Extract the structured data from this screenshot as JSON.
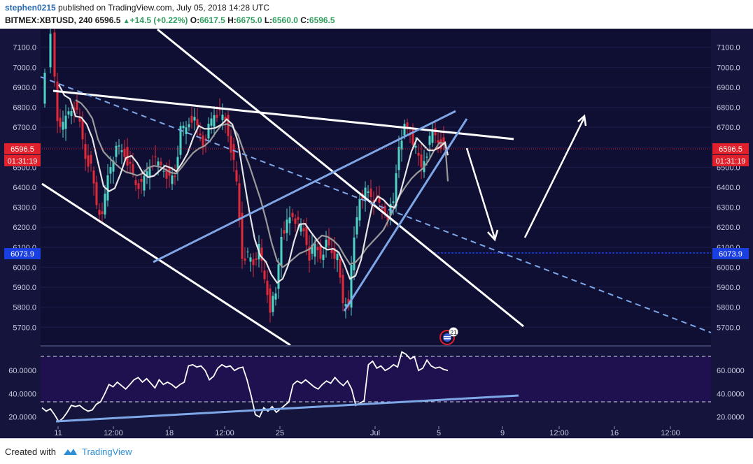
{
  "header": {
    "author": "stephen0215",
    "published": "published on TradingView.com, July 05, 2018 14:28 UTC",
    "symbol": "BITMEX:XBTUSD, 240",
    "last": "6596.5",
    "change_arrow": "▲",
    "change": "+14.5 (+0.22%)",
    "open_label": "O:",
    "open": "6617.5",
    "high_label": "H:",
    "high": "6675.0",
    "low_label": "L:",
    "low": "6560.0",
    "close_label": "C:",
    "close": "6596.5"
  },
  "footer": {
    "created_with": "Created with",
    "brand": "TradingView"
  },
  "chart_data": [
    {
      "type": "candlestick",
      "symbol": "BITMEX:XBTUSD",
      "interval": "240",
      "x_tick_labels": [
        "11",
        "12:00",
        "18",
        "12:00",
        "25",
        "Jul",
        "5",
        "9",
        "12:00",
        "16",
        "12:00"
      ],
      "y_tick_labels": [
        "5700.0",
        "5800.0",
        "5900.0",
        "6000.0",
        "6100.0",
        "6200.0",
        "6300.0",
        "6400.0",
        "6500.0",
        "6600.0",
        "6700.0",
        "6800.0",
        "6900.0",
        "7000.0",
        "7100.0"
      ],
      "ylim": [
        5610,
        7190
      ],
      "price_tags": [
        {
          "value": "6596.5",
          "color": "#e0202a"
        },
        {
          "value": "01:31:19",
          "color": "#e0202a"
        },
        {
          "value": "6073.9",
          "color": "#1a3fe0"
        }
      ],
      "colors": {
        "background": "#14143c",
        "candle_up": "#4fd3c4",
        "candle_down": "#e02a3a",
        "trendline": "#ffffff",
        "channel": "#7ea7e8",
        "ma_fast": "#e6e6e6",
        "ma_slow": "#9a9a9a",
        "price_line": "#e0202a",
        "support_line": "#1a3fe0"
      },
      "event_marker_count": "21"
    },
    {
      "type": "line",
      "indicator": "RSI",
      "y_tick_labels": [
        "20.0000",
        "40.0000",
        "60.0000"
      ],
      "ylim": [
        12,
        80
      ],
      "bands": [
        30,
        70
      ],
      "values": [
        28,
        25,
        27,
        22,
        16,
        19,
        24,
        30,
        29,
        30,
        27,
        25,
        26,
        31,
        33,
        40,
        48,
        46,
        50,
        47,
        44,
        48,
        52,
        54,
        50,
        53,
        49,
        45,
        52,
        48,
        50,
        48,
        45,
        48,
        50,
        64,
        65,
        63,
        64,
        60,
        52,
        55,
        62,
        65,
        63,
        64,
        60,
        62,
        63,
        52,
        38,
        22,
        20,
        28,
        25,
        29,
        24,
        27,
        30,
        33,
        48,
        51,
        49,
        52,
        49,
        46,
        44,
        48,
        51,
        49,
        54,
        50,
        47,
        51,
        44,
        30,
        32,
        34,
        65,
        68,
        62,
        64,
        60,
        62,
        65,
        63,
        76,
        74,
        70,
        72,
        60,
        62,
        69,
        64,
        62,
        63,
        61,
        60
      ]
    }
  ]
}
